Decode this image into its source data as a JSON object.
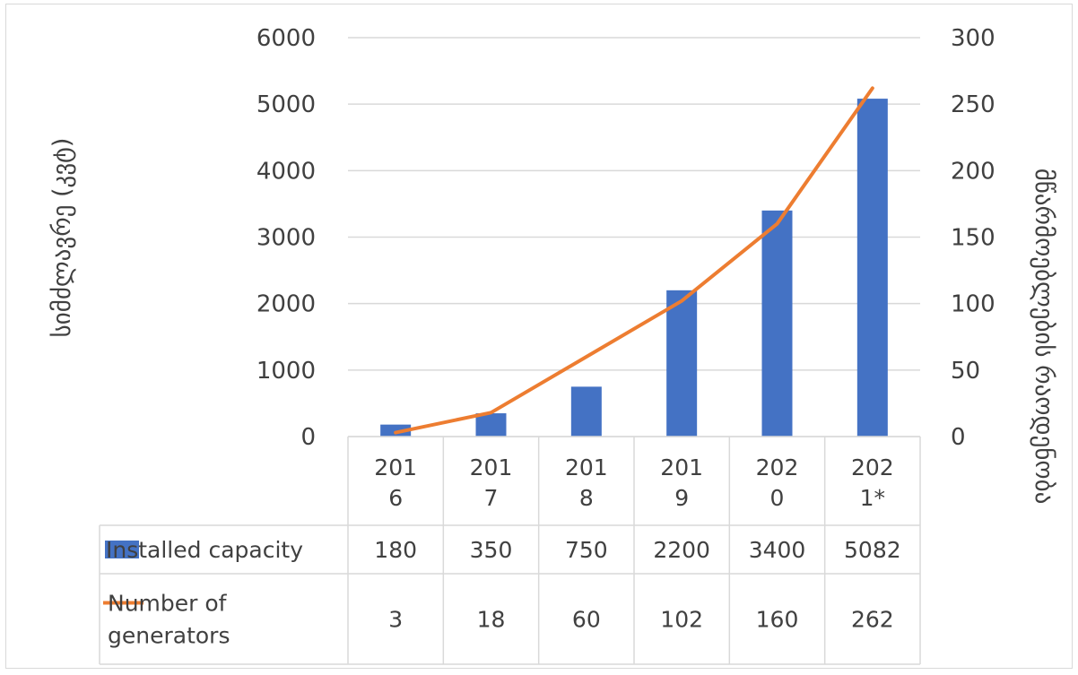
{
  "chart_data": {
    "type": "bar",
    "categories": [
      "2016",
      "2017",
      "2018",
      "2019",
      "2020",
      "2021*"
    ],
    "category_label_lines": [
      [
        "201",
        "6"
      ],
      [
        "201",
        "7"
      ],
      [
        "201",
        "8"
      ],
      [
        "201",
        "9"
      ],
      [
        "202",
        "0"
      ],
      [
        "202",
        "1*"
      ]
    ],
    "series": [
      {
        "name": "Installed capacity",
        "type": "bar",
        "axis": "left",
        "color": "#4472C4",
        "values": [
          180,
          350,
          750,
          2200,
          3400,
          5082
        ],
        "table_values": [
          "180",
          "350",
          "750",
          "2200",
          "3400",
          "5082"
        ]
      },
      {
        "name": "Number of generators",
        "name_lines": [
          "Number of",
          "generators"
        ],
        "type": "line",
        "axis": "right",
        "color": "#ED7D31",
        "values": [
          3,
          18,
          60,
          102,
          160,
          262
        ],
        "table_values": [
          "3",
          "18",
          "60",
          "102",
          "160",
          "262"
        ]
      }
    ],
    "y_left": {
      "label": "სიმძლავრე (კვტ)",
      "min": 0,
      "max": 6000,
      "ticks": [
        "0",
        "1000",
        "2000",
        "3000",
        "4000",
        "5000",
        "6000"
      ]
    },
    "y_right": {
      "label": "მწარმოებლების რაოდენობა",
      "min": 0,
      "max": 300,
      "ticks": [
        "0",
        "50",
        "100",
        "150",
        "200",
        "250",
        "300"
      ]
    },
    "grid": true,
    "legend": "data-table"
  }
}
